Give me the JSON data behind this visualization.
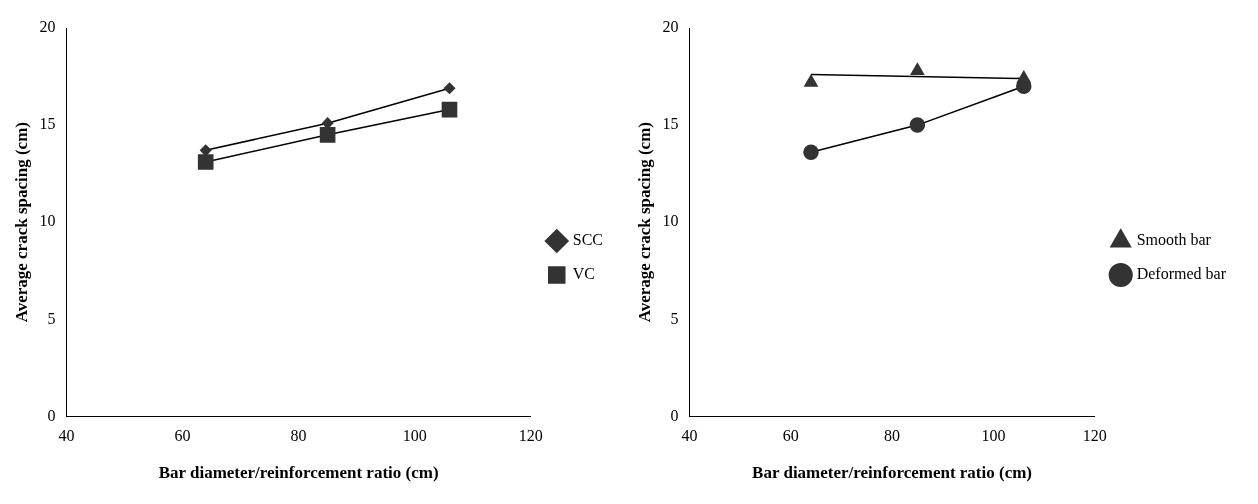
{
  "chart_data": [
    {
      "type": "line",
      "xlabel": "Bar diameter/reinforcement ratio (cm)",
      "ylabel": "Average crack spacing (cm)",
      "xlim": [
        40,
        120
      ],
      "xticks": [
        40,
        60,
        80,
        100,
        120
      ],
      "ylim": [
        0,
        20
      ],
      "yticks": [
        0,
        5,
        10,
        15,
        20
      ],
      "grid": false,
      "legend": "right",
      "series": [
        {
          "name": "SCC",
          "color": "#333333",
          "marker": "diamond",
          "x": [
            64,
            85,
            106
          ],
          "values": [
            13.7,
            15.1,
            16.9
          ]
        },
        {
          "name": "VC",
          "color": "#333333",
          "marker": "square",
          "x": [
            64,
            85,
            106
          ],
          "values": [
            13.1,
            14.5,
            15.8
          ]
        }
      ]
    },
    {
      "type": "line",
      "xlabel": "Bar diameter/reinforcement ratio (cm)",
      "ylabel": "Average crack spacing (cm)",
      "xlim": [
        40,
        120
      ],
      "xticks": [
        40,
        60,
        80,
        100,
        120
      ],
      "ylim": [
        0,
        20
      ],
      "yticks": [
        0,
        5,
        10,
        15,
        20
      ],
      "grid": false,
      "legend": "right",
      "series": [
        {
          "name": "Smooth bar",
          "type": "scatter",
          "color": "#333333",
          "marker": "triangle",
          "x": [
            64,
            85,
            106
          ],
          "values": [
            17.2,
            17.8,
            17.4
          ]
        },
        {
          "type": "line",
          "color": "#000000",
          "marker": "none",
          "x": [
            64,
            106
          ],
          "values": [
            17.6,
            17.4
          ]
        },
        {
          "name": "Deformed bar",
          "color": "#333333",
          "marker": "circle",
          "x": [
            64,
            85,
            106
          ],
          "values": [
            13.6,
            15.0,
            17.0
          ]
        }
      ]
    }
  ]
}
